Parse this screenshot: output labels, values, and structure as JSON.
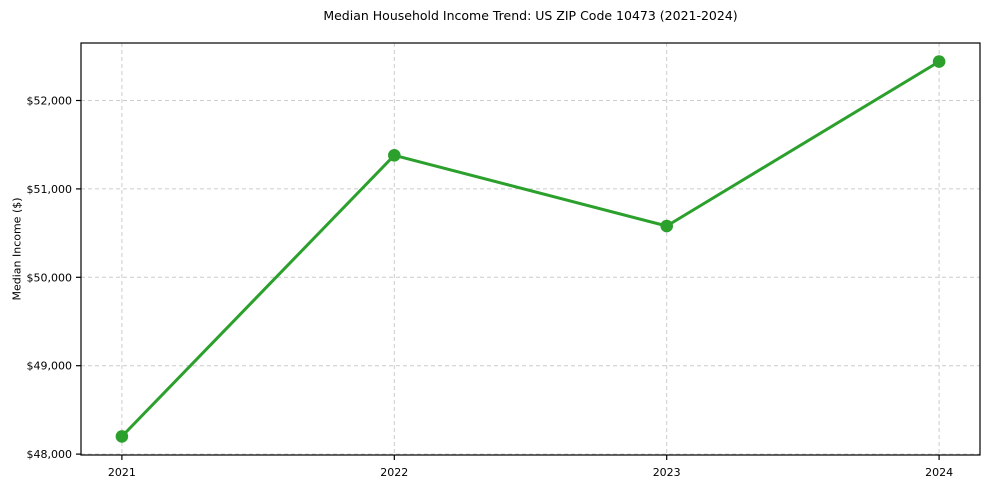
{
  "chart_data": {
    "type": "line",
    "title": "Median Household Income Trend: US ZIP Code 10473 (2021-2024)",
    "xlabel": "",
    "ylabel": "Median Income ($)",
    "x": [
      2021,
      2022,
      2023,
      2024
    ],
    "x_tick_labels": [
      "2021",
      "2022",
      "2023",
      "2024"
    ],
    "values": [
      48200,
      51380,
      50580,
      52440
    ],
    "y_ticks": [
      48000,
      49000,
      50000,
      51000,
      52000
    ],
    "y_tick_labels": [
      "$48,000",
      "$49,000",
      "$50,000",
      "$51,000",
      "$52,000"
    ],
    "xlim": [
      2020.85,
      2024.15
    ],
    "ylim": [
      47990,
      52650
    ],
    "grid": true,
    "legend_position": "none",
    "line_color": "#2ca02c",
    "marker": "circle",
    "grid_color": "#cccccc",
    "axis_color": "#000000",
    "text_color": "#000000",
    "background_color": "#ffffff"
  }
}
